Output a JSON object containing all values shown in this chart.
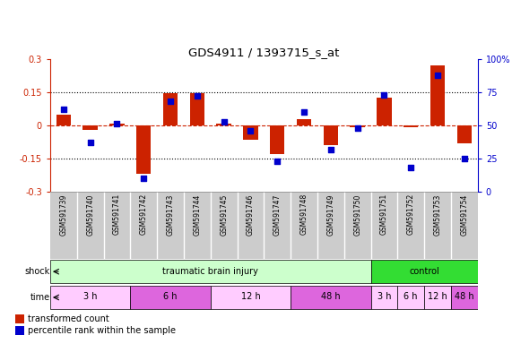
{
  "title": "GDS4911 / 1393715_s_at",
  "samples": [
    "GSM591739",
    "GSM591740",
    "GSM591741",
    "GSM591742",
    "GSM591743",
    "GSM591744",
    "GSM591745",
    "GSM591746",
    "GSM591747",
    "GSM591748",
    "GSM591749",
    "GSM591750",
    "GSM591751",
    "GSM591752",
    "GSM591753",
    "GSM591754"
  ],
  "bar_values": [
    0.05,
    -0.02,
    0.01,
    -0.22,
    0.145,
    0.145,
    0.01,
    -0.065,
    -0.13,
    0.03,
    -0.09,
    -0.01,
    0.125,
    -0.01,
    0.27,
    -0.08
  ],
  "dot_values": [
    62,
    37,
    51,
    10,
    68,
    72,
    53,
    46,
    23,
    60,
    32,
    48,
    73,
    18,
    88,
    25
  ],
  "ylim_left": [
    -0.3,
    0.3
  ],
  "ylim_right": [
    0,
    100
  ],
  "yticks_left": [
    -0.3,
    -0.15,
    0,
    0.15,
    0.3
  ],
  "yticks_right": [
    0,
    25,
    50,
    75,
    100
  ],
  "bar_color": "#cc2200",
  "dot_color": "#0000cc",
  "bg_color": "#ffffff",
  "shock_row": [
    {
      "label": "traumatic brain injury",
      "start": 0,
      "end": 12,
      "color": "#ccffcc"
    },
    {
      "label": "control",
      "start": 12,
      "end": 16,
      "color": "#33dd33"
    }
  ],
  "time_row": [
    {
      "label": "3 h",
      "start": 0,
      "end": 3,
      "color": "#ffccff"
    },
    {
      "label": "6 h",
      "start": 3,
      "end": 6,
      "color": "#dd66dd"
    },
    {
      "label": "12 h",
      "start": 6,
      "end": 9,
      "color": "#ffccff"
    },
    {
      "label": "48 h",
      "start": 9,
      "end": 12,
      "color": "#dd66dd"
    },
    {
      "label": "3 h",
      "start": 12,
      "end": 13,
      "color": "#ffccff"
    },
    {
      "label": "6 h",
      "start": 13,
      "end": 14,
      "color": "#ffccff"
    },
    {
      "label": "12 h",
      "start": 14,
      "end": 15,
      "color": "#ffccff"
    },
    {
      "label": "48 h",
      "start": 15,
      "end": 16,
      "color": "#dd66dd"
    }
  ],
  "legend_items": [
    {
      "label": "transformed count",
      "color": "#cc2200"
    },
    {
      "label": "percentile rank within the sample",
      "color": "#0000cc"
    }
  ],
  "sample_box_color": "#cccccc",
  "sample_box_edge": "#ffffff"
}
